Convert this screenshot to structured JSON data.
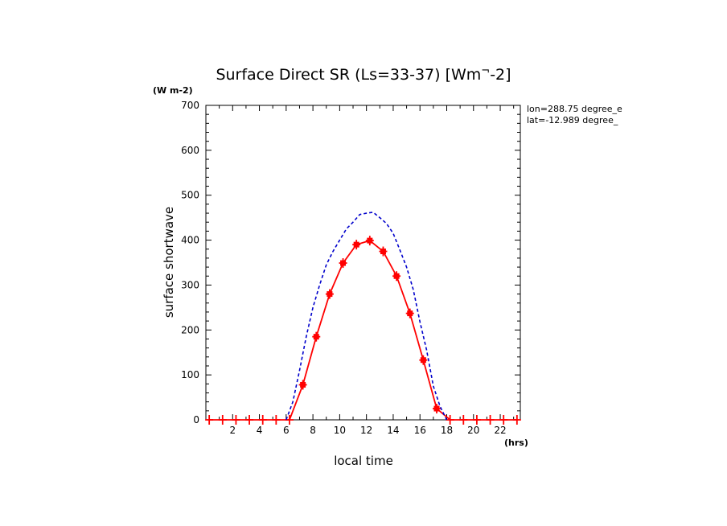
{
  "chart_data": {
    "type": "line",
    "title": "Surface Direct SR (Ls=33-37) [Wm^-2]",
    "ylabel": "surface shortwave",
    "yunit": "(W m-2)",
    "xlabel": "local time",
    "xunit": "(hrs)",
    "annotations": [
      "lon=288.75 degree_e",
      "lat=-12.989 degree_"
    ],
    "xlim": [
      0,
      23.5
    ],
    "ylim": [
      0,
      700
    ],
    "xticks": [
      2,
      4,
      6,
      8,
      10,
      12,
      14,
      16,
      18,
      20,
      22
    ],
    "yticks": [
      0,
      100,
      200,
      300,
      400,
      500,
      600,
      700
    ],
    "grid": false,
    "series": [
      {
        "style": "solid-with-markers",
        "color": "#ff0000",
        "x": [
          0.25,
          1.25,
          2.25,
          3.25,
          4.25,
          5.25,
          6.25,
          7.25,
          8.25,
          9.25,
          10.25,
          11.25,
          12.25,
          13.25,
          14.25,
          15.25,
          16.25,
          17.25,
          18.25,
          19.25,
          20.25,
          21.25,
          22.25,
          23.25
        ],
        "y": [
          0,
          0,
          0,
          0,
          0,
          0,
          0,
          78,
          185,
          280,
          349,
          390,
          399,
          375,
          320,
          237,
          133,
          25,
          0,
          0,
          0,
          0,
          0,
          0
        ]
      },
      {
        "style": "dashed",
        "color": "#0000cc",
        "x": [
          6.0,
          6.5,
          7.0,
          7.5,
          8.0,
          8.5,
          9.0,
          9.5,
          10.0,
          10.5,
          11.0,
          11.5,
          12.0,
          12.5,
          13.0,
          13.5,
          14.0,
          14.5,
          15.0,
          15.5,
          16.0,
          16.5,
          17.0,
          17.5,
          18.0
        ],
        "y": [
          0,
          40,
          110,
          185,
          250,
          300,
          345,
          375,
          400,
          425,
          440,
          457,
          460,
          462,
          450,
          437,
          415,
          378,
          340,
          290,
          218,
          155,
          75,
          30,
          0
        ]
      }
    ]
  }
}
